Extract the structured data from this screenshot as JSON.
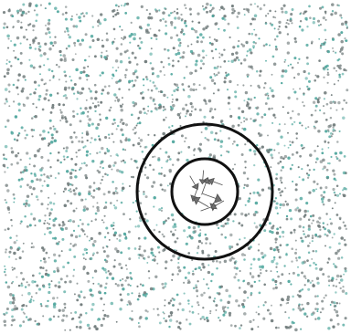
{
  "colors": {
    "background": "#ffffff",
    "dot_gray": "#6f7a7a",
    "dot_teal": "#4fa69d",
    "ring": "#111111",
    "arrow_fill": "#707070",
    "arrow_stroke": "#505050"
  },
  "stimulus": {
    "dots": "random-dot-field",
    "outer_ring": "ring-outline",
    "inner_ring": "ring-outline",
    "arrows": "arrow-cluster"
  }
}
